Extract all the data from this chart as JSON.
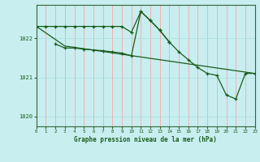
{
  "title": "Graphe pression niveau de la mer (hPa)",
  "background_color": "#c8eef0",
  "plot_bg_color": "#c8eef0",
  "grid_color_v": "#ff9999",
  "grid_color_h": "#aadddd",
  "line_color": "#1a5c1a",
  "xlim": [
    0,
    23
  ],
  "ylim": [
    1019.75,
    1022.85
  ],
  "yticks": [
    1020,
    1021,
    1022
  ],
  "xticks": [
    0,
    1,
    2,
    3,
    4,
    5,
    6,
    7,
    8,
    9,
    10,
    11,
    12,
    13,
    14,
    15,
    16,
    17,
    18,
    19,
    20,
    21,
    22,
    23
  ],
  "line1_x": [
    0,
    1,
    2,
    3,
    4,
    5,
    6,
    7,
    8,
    9,
    10,
    11,
    12,
    13,
    14
  ],
  "line1_y": [
    1022.3,
    1022.3,
    1022.3,
    1022.3,
    1022.3,
    1022.3,
    1022.3,
    1022.3,
    1022.3,
    1022.3,
    1022.15,
    1022.68,
    1022.45,
    1022.2,
    1021.9
  ],
  "line2_x": [
    2,
    3,
    4,
    5,
    6,
    7,
    8,
    9,
    10,
    11,
    12,
    13,
    14,
    15,
    16,
    17,
    18,
    19,
    20,
    21,
    22,
    23
  ],
  "line2_y": [
    1021.85,
    1021.75,
    1021.75,
    1021.72,
    1021.7,
    1021.68,
    1021.65,
    1021.62,
    1021.55,
    1022.68,
    1022.45,
    1022.2,
    1021.9,
    1021.65,
    1021.45,
    1021.25,
    1021.1,
    1021.05,
    1020.55,
    1020.45,
    1021.1,
    1021.1
  ],
  "line3_x": [
    0,
    3,
    23
  ],
  "line3_y": [
    1022.3,
    1021.8,
    1021.1
  ]
}
